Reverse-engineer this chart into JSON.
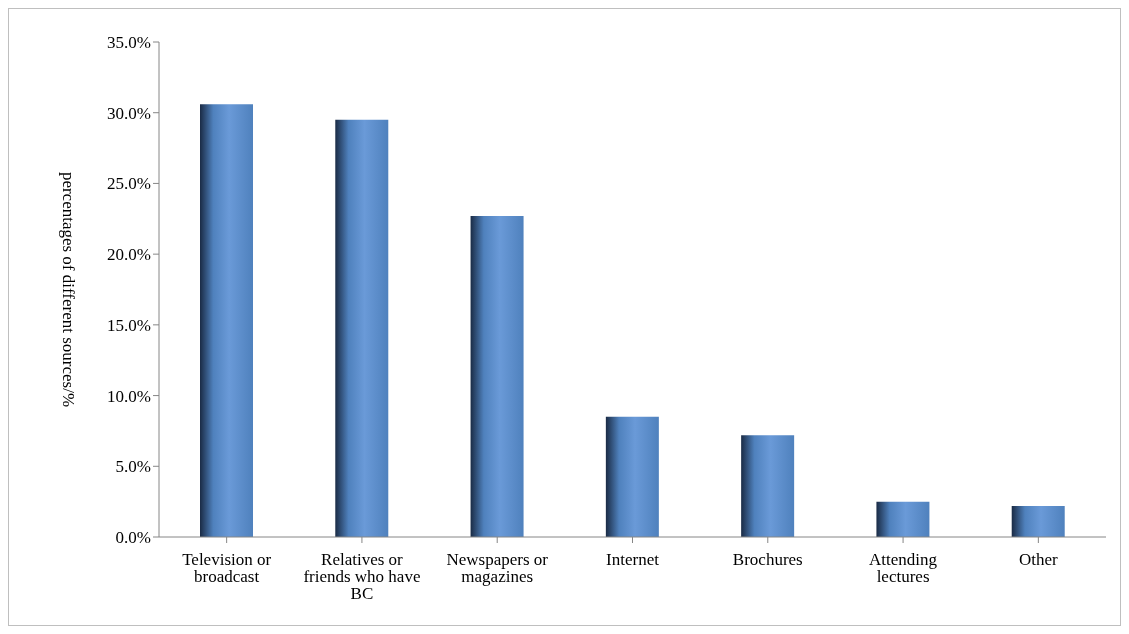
{
  "chart_data": {
    "type": "bar",
    "ylabel": "percentages of different sources/%",
    "categories": [
      "Television or broadcast",
      "Relatives or friends who have BC",
      "Newspapers or magazines",
      "Internet",
      "Brochures",
      "Attending lectures",
      "Other"
    ],
    "values": [
      30.6,
      29.5,
      22.7,
      8.5,
      7.2,
      2.5,
      2.2
    ],
    "color": "#4f81bd",
    "ylim": [
      0,
      35
    ],
    "yticks": [
      {
        "value": 0,
        "label": "0.0%"
      },
      {
        "value": 5,
        "label": "5.0%"
      },
      {
        "value": 10,
        "label": "10.0%"
      },
      {
        "value": 15,
        "label": "15.0%"
      },
      {
        "value": 20,
        "label": "20.0%"
      },
      {
        "value": 25,
        "label": "25.0%"
      },
      {
        "value": 30,
        "label": "30.0%"
      },
      {
        "value": 35,
        "label": "35.0%"
      }
    ],
    "grid": false
  }
}
